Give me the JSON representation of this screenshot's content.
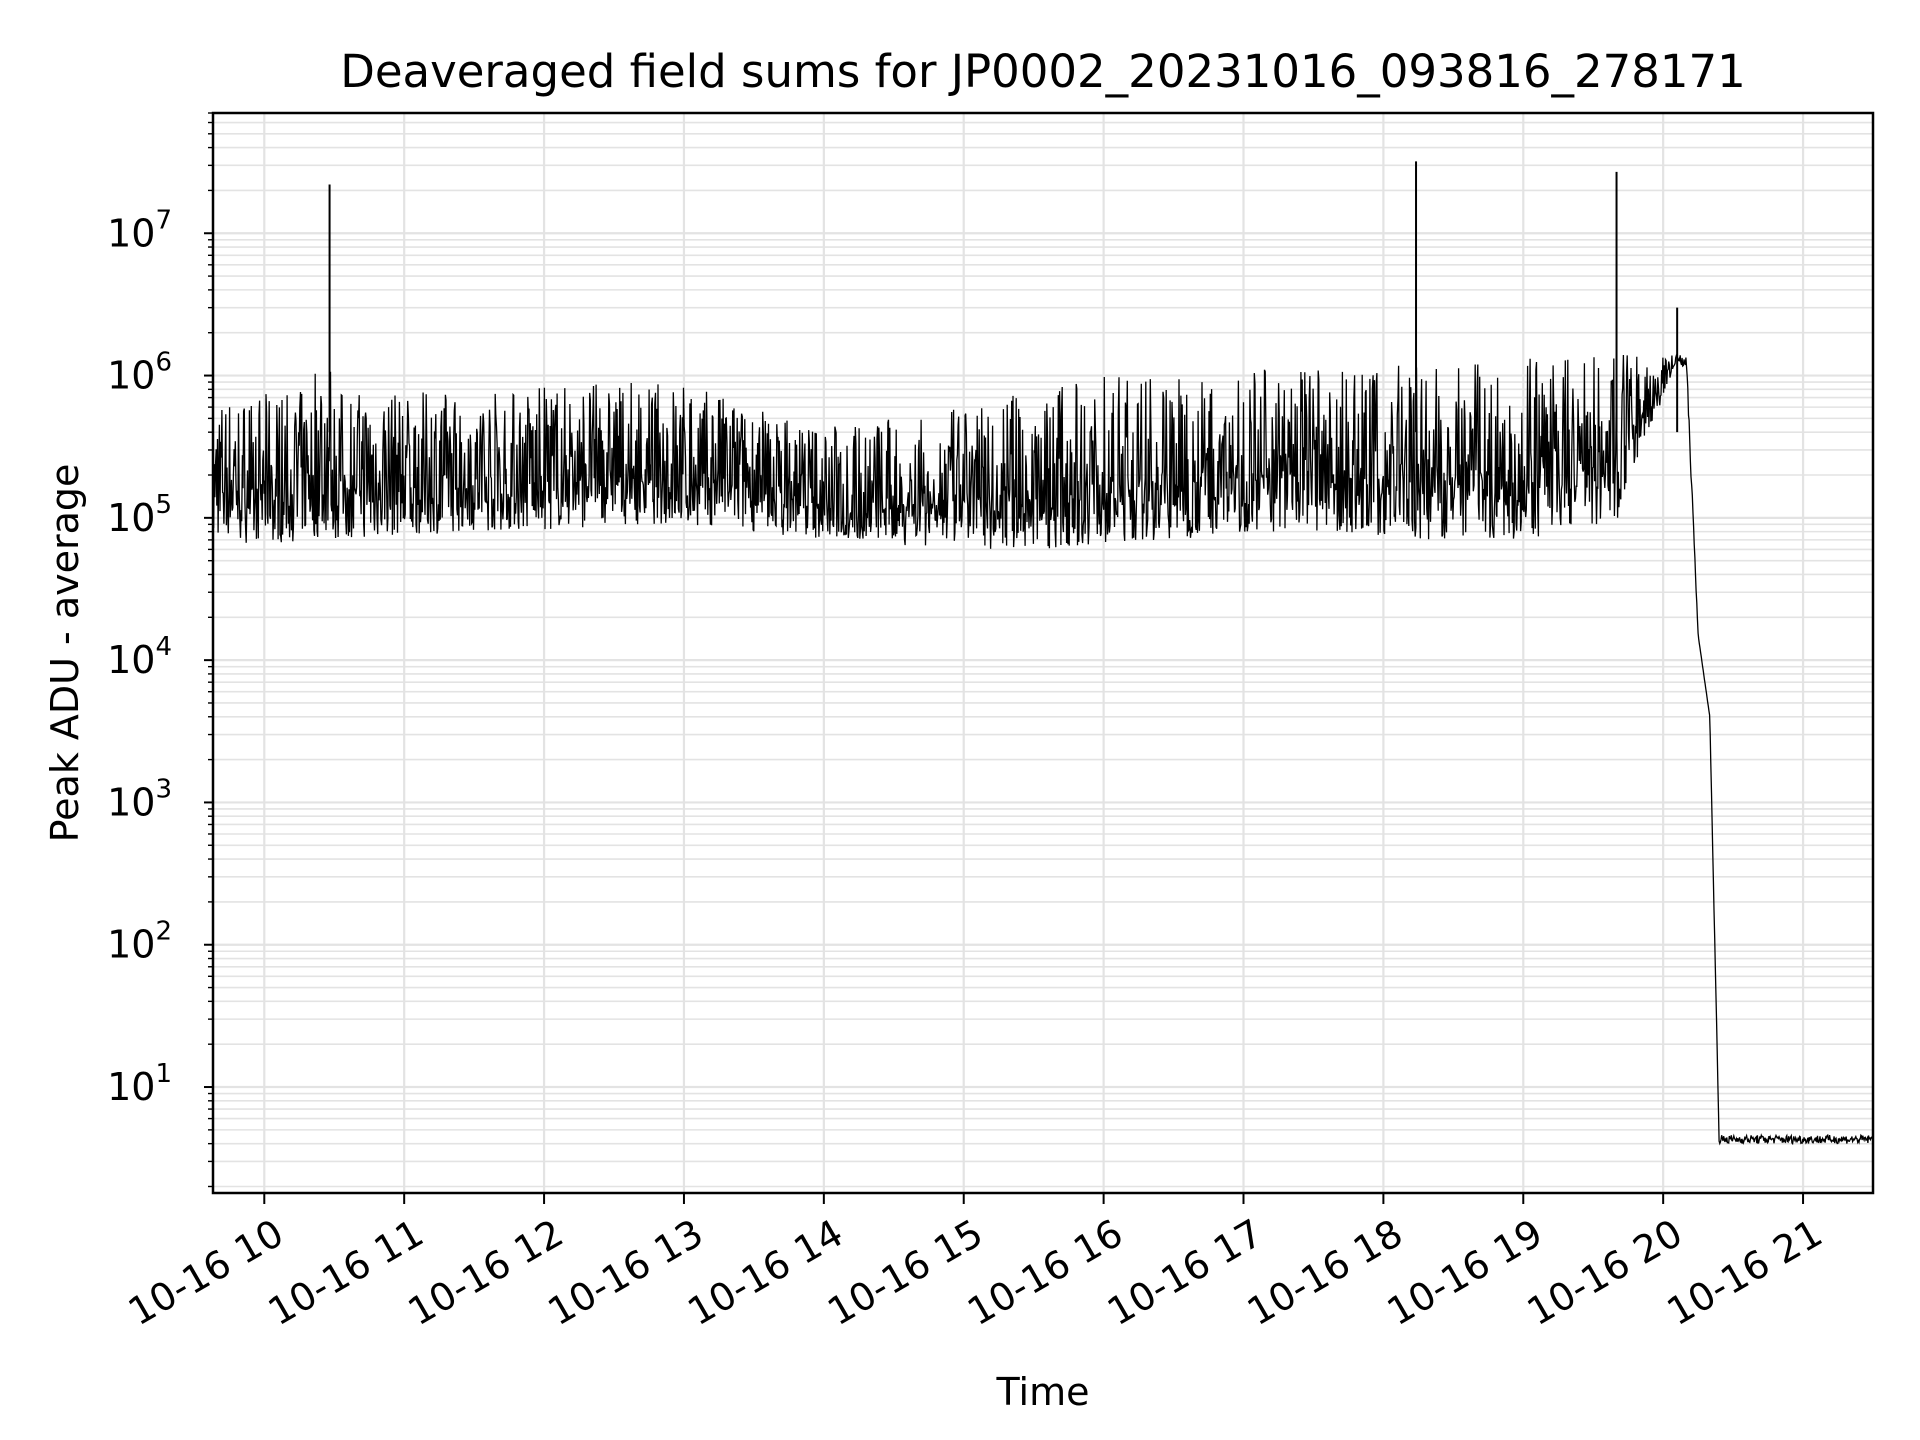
{
  "chart_data": {
    "type": "line",
    "title": "Deaveraged field sums for JP0002_20231016_093816_278171",
    "xlabel": "Time",
    "ylabel": "Peak ADU - average",
    "yscale": "log",
    "ylim": [
      1.8,
      70000000
    ],
    "xlim": [
      "2023-10-16T09:38",
      "2023-10-16T21:30"
    ],
    "grid": true,
    "x_tick_labels": [
      "10-16 10",
      "10-16 11",
      "10-16 12",
      "10-16 13",
      "10-16 14",
      "10-16 15",
      "10-16 16",
      "10-16 17",
      "10-16 18",
      "10-16 19",
      "10-16 20",
      "10-16 21"
    ],
    "y_tick_labels": [
      {
        "base": "10",
        "exp": "1",
        "value": 10
      },
      {
        "base": "10",
        "exp": "2",
        "value": 100
      },
      {
        "base": "10",
        "exp": "3",
        "value": 1000
      },
      {
        "base": "10",
        "exp": "4",
        "value": 10000
      },
      {
        "base": "10",
        "exp": "5",
        "value": 100000
      },
      {
        "base": "10",
        "exp": "6",
        "value": 1000000
      },
      {
        "base": "10",
        "exp": "7",
        "value": 10000000
      }
    ],
    "line_color": "#000000",
    "grid_color": "#e3e3e3",
    "series": [
      {
        "x": [
          "2023-10-16T09:38",
          "2023-10-16T10:00",
          "2023-10-16T10:20",
          "2023-10-16T10:28",
          "2023-10-16T10:30",
          "2023-10-16T11:00",
          "2023-10-16T11:30",
          "2023-10-16T11:48",
          "2023-10-16T12:00",
          "2023-10-16T12:30",
          "2023-10-16T13:00",
          "2023-10-16T13:30",
          "2023-10-16T14:00",
          "2023-10-16T14:30",
          "2023-10-16T15:00",
          "2023-10-16T15:30",
          "2023-10-16T16:00",
          "2023-10-16T16:30",
          "2023-10-16T17:00",
          "2023-10-16T17:30",
          "2023-10-16T18:00",
          "2023-10-16T18:14",
          "2023-10-16T18:30",
          "2023-10-16T19:00",
          "2023-10-16T19:40",
          "2023-10-16T19:50",
          "2023-10-16T20:00",
          "2023-10-16T20:06",
          "2023-10-16T20:10",
          "2023-10-16T20:15",
          "2023-10-16T20:20",
          "2023-10-16T20:24",
          "2023-10-16T20:30",
          "2023-10-16T21:00",
          "2023-10-16T21:30"
        ],
        "y_low": [
          70000,
          65000,
          70000,
          70000,
          70000,
          75000,
          80000,
          80000,
          80000,
          90000,
          90000,
          80000,
          70000,
          65000,
          60000,
          60000,
          65000,
          70000,
          80000,
          80000,
          70000,
          70000,
          70000,
          70000,
          90000,
          300000,
          700000,
          1300000,
          1000000,
          15000,
          4000,
          4,
          4,
          4,
          4
        ],
        "y_high": [
          700000,
          750000,
          800000,
          22000000,
          800000,
          750000,
          800000,
          800000,
          850000,
          900000,
          900000,
          600000,
          450000,
          500000,
          600000,
          800000,
          1000000,
          1000000,
          1100000,
          1100000,
          1100000,
          32000000,
          1200000,
          1200000,
          27000000,
          1200000,
          1500000,
          3000000,
          1400000,
          15000,
          4000,
          4.6,
          4.6,
          4.6,
          4.6
        ]
      }
    ]
  }
}
